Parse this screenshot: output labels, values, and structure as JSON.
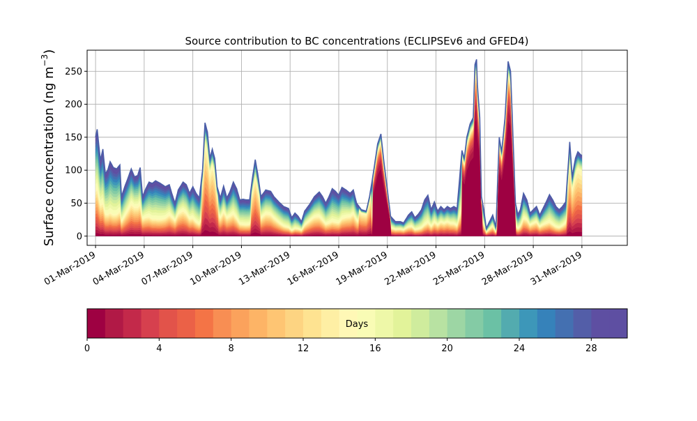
{
  "chart_data": {
    "type": "area",
    "title": "Source contribution to BC concentrations (ECLIPSEv6 and GFED4)",
    "ylabel_main": "Surface concentration (ng m",
    "ylabel_exp": "−3",
    "ylabel_close": ")",
    "xlabel": "",
    "ylim": [
      -14,
      282
    ],
    "yticks": [
      0,
      50,
      100,
      150,
      200,
      250
    ],
    "grid": true,
    "x_start_day": 1,
    "x_end_day": 33,
    "xticks": [
      {
        "day": 1,
        "label": "01-Mar-2019"
      },
      {
        "day": 4,
        "label": "04-Mar-2019"
      },
      {
        "day": 7,
        "label": "07-Mar-2019"
      },
      {
        "day": 10,
        "label": "10-Mar-2019"
      },
      {
        "day": 13,
        "label": "13-Mar-2019"
      },
      {
        "day": 16,
        "label": "16-Mar-2019"
      },
      {
        "day": 19,
        "label": "19-Mar-2019"
      },
      {
        "day": 22,
        "label": "22-Mar-2019"
      },
      {
        "day": 25,
        "label": "25-Mar-2019"
      },
      {
        "day": 28,
        "label": "28-Mar-2019"
      },
      {
        "day": 31,
        "label": "31-Mar-2019"
      }
    ],
    "series_count": 30,
    "total_envelope": [
      [
        1.0,
        150
      ],
      [
        1.1,
        162
      ],
      [
        1.3,
        115
      ],
      [
        1.45,
        132
      ],
      [
        1.6,
        95
      ],
      [
        1.75,
        100
      ],
      [
        1.9,
        113
      ],
      [
        2.1,
        104
      ],
      [
        2.3,
        102
      ],
      [
        2.5,
        108
      ],
      [
        2.6,
        60
      ],
      [
        2.8,
        75
      ],
      [
        3.0,
        88
      ],
      [
        3.2,
        102
      ],
      [
        3.4,
        90
      ],
      [
        3.6,
        92
      ],
      [
        3.75,
        104
      ],
      [
        3.9,
        60
      ],
      [
        4.1,
        72
      ],
      [
        4.3,
        82
      ],
      [
        4.5,
        80
      ],
      [
        4.7,
        84
      ],
      [
        5.0,
        80
      ],
      [
        5.3,
        75
      ],
      [
        5.55,
        78
      ],
      [
        5.7,
        65
      ],
      [
        5.9,
        50
      ],
      [
        6.1,
        70
      ],
      [
        6.4,
        82
      ],
      [
        6.6,
        78
      ],
      [
        6.8,
        65
      ],
      [
        7.0,
        75
      ],
      [
        7.2,
        65
      ],
      [
        7.4,
        58
      ],
      [
        7.6,
        100
      ],
      [
        7.75,
        172
      ],
      [
        7.9,
        158
      ],
      [
        8.05,
        118
      ],
      [
        8.2,
        132
      ],
      [
        8.35,
        118
      ],
      [
        8.5,
        75
      ],
      [
        8.7,
        58
      ],
      [
        8.9,
        76
      ],
      [
        9.1,
        58
      ],
      [
        9.3,
        68
      ],
      [
        9.5,
        82
      ],
      [
        9.7,
        72
      ],
      [
        9.9,
        55
      ],
      [
        10.1,
        56
      ],
      [
        10.3,
        55
      ],
      [
        10.5,
        55
      ],
      [
        10.7,
        92
      ],
      [
        10.85,
        116
      ],
      [
        11.0,
        95
      ],
      [
        11.2,
        60
      ],
      [
        11.5,
        70
      ],
      [
        11.8,
        68
      ],
      [
        12.0,
        60
      ],
      [
        12.3,
        52
      ],
      [
        12.6,
        45
      ],
      [
        12.9,
        42
      ],
      [
        13.1,
        28
      ],
      [
        13.3,
        35
      ],
      [
        13.5,
        30
      ],
      [
        13.7,
        22
      ],
      [
        13.9,
        38
      ],
      [
        14.2,
        48
      ],
      [
        14.5,
        60
      ],
      [
        14.8,
        67
      ],
      [
        15.0,
        60
      ],
      [
        15.2,
        50
      ],
      [
        15.4,
        60
      ],
      [
        15.6,
        72
      ],
      [
        15.8,
        68
      ],
      [
        16.0,
        62
      ],
      [
        16.2,
        74
      ],
      [
        16.45,
        70
      ],
      [
        16.7,
        65
      ],
      [
        16.9,
        70
      ],
      [
        17.1,
        50
      ],
      [
        17.4,
        40
      ],
      [
        17.7,
        38
      ],
      [
        17.9,
        60
      ],
      [
        18.1,
        90
      ],
      [
        18.4,
        140
      ],
      [
        18.6,
        155
      ],
      [
        18.8,
        110
      ],
      [
        19.0,
        70
      ],
      [
        19.2,
        30
      ],
      [
        19.5,
        22
      ],
      [
        19.8,
        22
      ],
      [
        20.0,
        20
      ],
      [
        20.3,
        32
      ],
      [
        20.5,
        37
      ],
      [
        20.7,
        28
      ],
      [
        20.9,
        33
      ],
      [
        21.1,
        40
      ],
      [
        21.3,
        55
      ],
      [
        21.5,
        62
      ],
      [
        21.7,
        40
      ],
      [
        21.9,
        52
      ],
      [
        22.1,
        38
      ],
      [
        22.3,
        45
      ],
      [
        22.5,
        40
      ],
      [
        22.7,
        45
      ],
      [
        22.9,
        42
      ],
      [
        23.1,
        45
      ],
      [
        23.3,
        42
      ],
      [
        23.6,
        130
      ],
      [
        23.75,
        118
      ],
      [
        23.9,
        150
      ],
      [
        24.1,
        170
      ],
      [
        24.3,
        180
      ],
      [
        24.4,
        260
      ],
      [
        24.5,
        268
      ],
      [
        24.55,
        230
      ],
      [
        24.7,
        180
      ],
      [
        24.8,
        60
      ],
      [
        24.95,
        40
      ],
      [
        25.1,
        12
      ],
      [
        25.3,
        22
      ],
      [
        25.5,
        32
      ],
      [
        25.7,
        14
      ],
      [
        25.9,
        150
      ],
      [
        26.05,
        128
      ],
      [
        26.25,
        178
      ],
      [
        26.45,
        265
      ],
      [
        26.6,
        250
      ],
      [
        26.75,
        150
      ],
      [
        26.9,
        50
      ],
      [
        27.05,
        33
      ],
      [
        27.2,
        40
      ],
      [
        27.4,
        65
      ],
      [
        27.6,
        55
      ],
      [
        27.8,
        35
      ],
      [
        28.0,
        40
      ],
      [
        28.2,
        45
      ],
      [
        28.4,
        32
      ],
      [
        28.6,
        42
      ],
      [
        28.8,
        52
      ],
      [
        29.0,
        63
      ],
      [
        29.2,
        55
      ],
      [
        29.4,
        45
      ],
      [
        29.6,
        40
      ],
      [
        29.8,
        45
      ],
      [
        30.0,
        52
      ],
      [
        30.15,
        105
      ],
      [
        30.25,
        143
      ],
      [
        30.4,
        90
      ],
      [
        30.6,
        118
      ],
      [
        30.75,
        128
      ],
      [
        30.9,
        124
      ],
      [
        31.0,
        122
      ]
    ],
    "colorbar": {
      "label": "Days",
      "min": 0,
      "max": 30,
      "ticks": [
        0,
        4,
        8,
        12,
        16,
        20,
        24,
        28
      ],
      "colors": [
        "#9e0142",
        "#b11946",
        "#c3294a",
        "#d6404e",
        "#e2534a",
        "#eb6147",
        "#f47446",
        "#f88e53",
        "#fba25c",
        "#fdb466",
        "#fec573",
        "#fdd482",
        "#fee391",
        "#feefa4",
        "#fff8b6",
        "#f9fcb5",
        "#eef8a8",
        "#e2f39a",
        "#cfec9d",
        "#b8e2a2",
        "#9dd6a4",
        "#84cba5",
        "#6bc1a5",
        "#53abaf",
        "#3d97b9",
        "#3682ba",
        "#4470b1",
        "#535ea8",
        "#5e4fa2",
        "#5e4fa2"
      ]
    }
  }
}
